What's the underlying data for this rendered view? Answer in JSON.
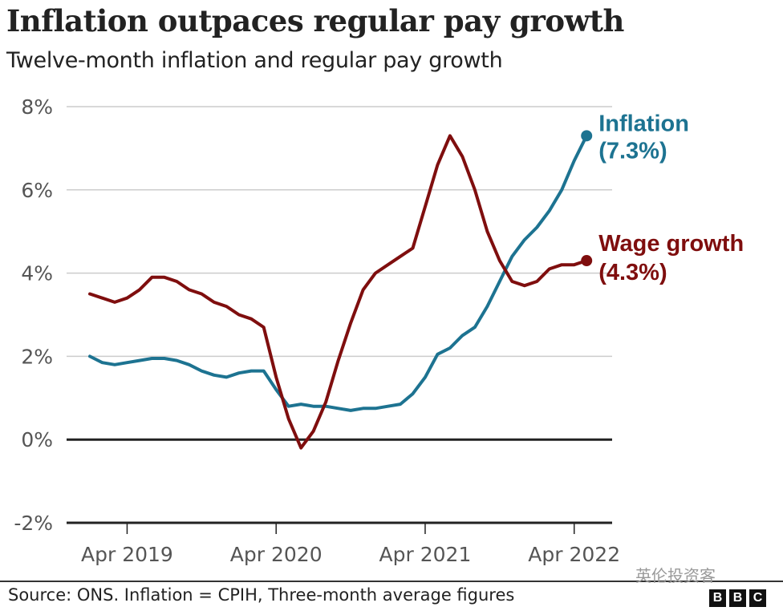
{
  "header": {
    "title": "Inflation outpaces regular pay growth",
    "subtitle": "Twelve-month inflation and regular pay growth"
  },
  "footer": {
    "source": "Source: ONS. Inflation = CPIH, Three-month average figures",
    "watermark": "英伦投资客",
    "logo_letters": [
      "B",
      "B",
      "C"
    ]
  },
  "colors": {
    "inflation": "#1d7391",
    "wage_growth": "#7f0e0e",
    "gridline": "#cccccc",
    "zero_line": "#222222",
    "tick_text": "#555555"
  },
  "chart_data": {
    "type": "line",
    "title": "Inflation outpaces regular pay growth",
    "subtitle": "Twelve-month inflation and regular pay growth",
    "xlabel": "",
    "ylabel": "",
    "x": [
      "Jan 2019",
      "Feb 2019",
      "Mar 2019",
      "Apr 2019",
      "May 2019",
      "Jun 2019",
      "Jul 2019",
      "Aug 2019",
      "Sep 2019",
      "Oct 2019",
      "Nov 2019",
      "Dec 2019",
      "Jan 2020",
      "Feb 2020",
      "Mar 2020",
      "Apr 2020",
      "May 2020",
      "Jun 2020",
      "Jul 2020",
      "Aug 2020",
      "Sep 2020",
      "Oct 2020",
      "Nov 2020",
      "Dec 2020",
      "Jan 2021",
      "Feb 2021",
      "Mar 2021",
      "Apr 2021",
      "May 2021",
      "Jun 2021",
      "Jul 2021",
      "Aug 2021",
      "Sep 2021",
      "Oct 2021",
      "Nov 2021",
      "Dec 2021",
      "Jan 2022",
      "Feb 2022",
      "Mar 2022",
      "Apr 2022",
      "May 2022"
    ],
    "x_ticks": [
      "Apr 2019",
      "Apr 2020",
      "Apr 2021",
      "Apr 2022"
    ],
    "x_tick_index": [
      3,
      15,
      27,
      39
    ],
    "y_ticks": [
      8,
      6,
      4,
      2,
      0,
      -2
    ],
    "y_tick_labels": [
      "8%",
      "6%",
      "4%",
      "2%",
      "0%",
      "-2%"
    ],
    "ylim": [
      -2,
      8
    ],
    "grid": true,
    "series": [
      {
        "name": "Inflation",
        "end_label_name": "Inflation",
        "end_label_value": "(7.3%)",
        "values": [
          2.0,
          1.85,
          1.8,
          1.85,
          1.9,
          1.95,
          1.95,
          1.9,
          1.8,
          1.65,
          1.55,
          1.5,
          1.6,
          1.65,
          1.65,
          1.2,
          0.8,
          0.85,
          0.8,
          0.8,
          0.75,
          0.7,
          0.75,
          0.75,
          0.8,
          0.85,
          1.1,
          1.5,
          2.05,
          2.2,
          2.5,
          2.7,
          3.2,
          3.8,
          4.4,
          4.8,
          5.1,
          5.5,
          6.0,
          6.7,
          7.3
        ]
      },
      {
        "name": "Wage growth",
        "end_label_name": "Wage growth",
        "end_label_value": "(4.3%)",
        "values": [
          3.5,
          3.4,
          3.3,
          3.4,
          3.6,
          3.9,
          3.9,
          3.8,
          3.6,
          3.5,
          3.3,
          3.2,
          3.0,
          2.9,
          2.7,
          1.5,
          0.5,
          -0.2,
          0.2,
          0.9,
          1.9,
          2.8,
          3.6,
          4.0,
          4.2,
          4.4,
          4.6,
          5.6,
          6.6,
          7.3,
          6.8,
          6.0,
          5.0,
          4.3,
          3.8,
          3.7,
          3.8,
          4.1,
          4.2,
          4.2,
          4.3
        ]
      }
    ],
    "legend": "inline-end-labels-right"
  }
}
